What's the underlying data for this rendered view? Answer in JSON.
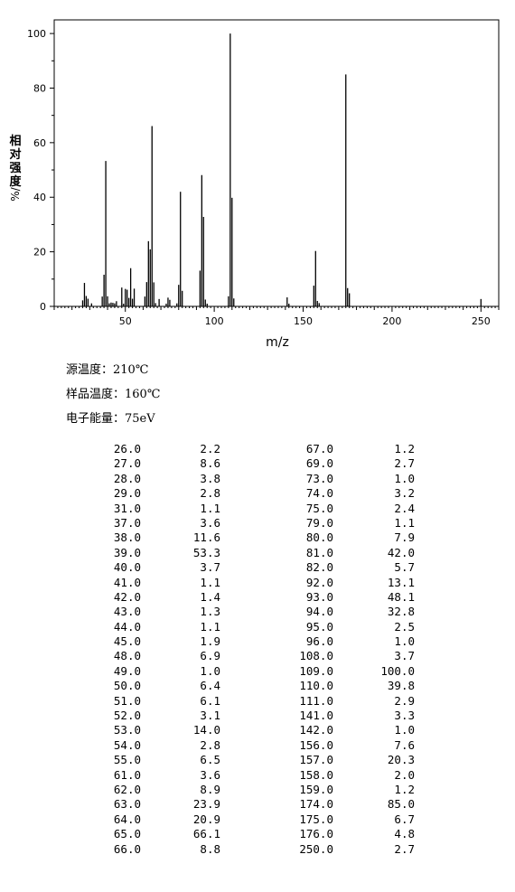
{
  "chart_data": {
    "type": "bar",
    "xlabel": "m/z",
    "ylabel": "相对强度/%",
    "xlim": [
      10,
      260
    ],
    "ylim": [
      0,
      105
    ],
    "xticks": [
      50,
      100,
      150,
      200,
      250
    ],
    "yticks": [
      0,
      20,
      40,
      60,
      80,
      100
    ],
    "grid": false,
    "peaks": [
      {
        "x": 26.0,
        "y": 2.2
      },
      {
        "x": 27.0,
        "y": 8.6
      },
      {
        "x": 28.0,
        "y": 3.8
      },
      {
        "x": 29.0,
        "y": 2.8
      },
      {
        "x": 31.0,
        "y": 1.1
      },
      {
        "x": 37.0,
        "y": 3.6
      },
      {
        "x": 38.0,
        "y": 11.6
      },
      {
        "x": 39.0,
        "y": 53.3
      },
      {
        "x": 40.0,
        "y": 3.7
      },
      {
        "x": 41.0,
        "y": 1.1
      },
      {
        "x": 42.0,
        "y": 1.4
      },
      {
        "x": 43.0,
        "y": 1.3
      },
      {
        "x": 44.0,
        "y": 1.1
      },
      {
        "x": 45.0,
        "y": 1.9
      },
      {
        "x": 48.0,
        "y": 6.9
      },
      {
        "x": 49.0,
        "y": 1.0
      },
      {
        "x": 50.0,
        "y": 6.4
      },
      {
        "x": 51.0,
        "y": 6.1
      },
      {
        "x": 52.0,
        "y": 3.1
      },
      {
        "x": 53.0,
        "y": 14.0
      },
      {
        "x": 54.0,
        "y": 2.8
      },
      {
        "x": 55.0,
        "y": 6.5
      },
      {
        "x": 61.0,
        "y": 3.6
      },
      {
        "x": 62.0,
        "y": 8.9
      },
      {
        "x": 63.0,
        "y": 23.9
      },
      {
        "x": 64.0,
        "y": 20.9
      },
      {
        "x": 65.0,
        "y": 66.1
      },
      {
        "x": 66.0,
        "y": 8.8
      },
      {
        "x": 67.0,
        "y": 1.2
      },
      {
        "x": 69.0,
        "y": 2.7
      },
      {
        "x": 73.0,
        "y": 1.0
      },
      {
        "x": 74.0,
        "y": 3.2
      },
      {
        "x": 75.0,
        "y": 2.4
      },
      {
        "x": 79.0,
        "y": 1.1
      },
      {
        "x": 80.0,
        "y": 7.9
      },
      {
        "x": 81.0,
        "y": 42.0
      },
      {
        "x": 82.0,
        "y": 5.7
      },
      {
        "x": 92.0,
        "y": 13.1
      },
      {
        "x": 93.0,
        "y": 48.1
      },
      {
        "x": 94.0,
        "y": 32.8
      },
      {
        "x": 95.0,
        "y": 2.5
      },
      {
        "x": 96.0,
        "y": 1.0
      },
      {
        "x": 108.0,
        "y": 3.7
      },
      {
        "x": 109.0,
        "y": 100.0
      },
      {
        "x": 110.0,
        "y": 39.8
      },
      {
        "x": 111.0,
        "y": 2.9
      },
      {
        "x": 141.0,
        "y": 3.3
      },
      {
        "x": 142.0,
        "y": 1.0
      },
      {
        "x": 156.0,
        "y": 7.6
      },
      {
        "x": 157.0,
        "y": 20.3
      },
      {
        "x": 158.0,
        "y": 2.0
      },
      {
        "x": 159.0,
        "y": 1.2
      },
      {
        "x": 174.0,
        "y": 85.0
      },
      {
        "x": 175.0,
        "y": 6.7
      },
      {
        "x": 176.0,
        "y": 4.8
      },
      {
        "x": 250.0,
        "y": 2.7
      }
    ]
  },
  "conditions": {
    "source_temp": "源温度：210℃",
    "sample_temp": "样品温度：160℃",
    "electron_energy": "电子能量：75eV"
  },
  "table": {
    "rows": [
      [
        "26.0",
        "2.2",
        "67.0",
        "1.2"
      ],
      [
        "27.0",
        "8.6",
        "69.0",
        "2.7"
      ],
      [
        "28.0",
        "3.8",
        "73.0",
        "1.0"
      ],
      [
        "29.0",
        "2.8",
        "74.0",
        "3.2"
      ],
      [
        "31.0",
        "1.1",
        "75.0",
        "2.4"
      ],
      [
        "37.0",
        "3.6",
        "79.0",
        "1.1"
      ],
      [
        "38.0",
        "11.6",
        "80.0",
        "7.9"
      ],
      [
        "39.0",
        "53.3",
        "81.0",
        "42.0"
      ],
      [
        "40.0",
        "3.7",
        "82.0",
        "5.7"
      ],
      [
        "41.0",
        "1.1",
        "92.0",
        "13.1"
      ],
      [
        "42.0",
        "1.4",
        "93.0",
        "48.1"
      ],
      [
        "43.0",
        "1.3",
        "94.0",
        "32.8"
      ],
      [
        "44.0",
        "1.1",
        "95.0",
        "2.5"
      ],
      [
        "45.0",
        "1.9",
        "96.0",
        "1.0"
      ],
      [
        "48.0",
        "6.9",
        "108.0",
        "3.7"
      ],
      [
        "49.0",
        "1.0",
        "109.0",
        "100.0"
      ],
      [
        "50.0",
        "6.4",
        "110.0",
        "39.8"
      ],
      [
        "51.0",
        "6.1",
        "111.0",
        "2.9"
      ],
      [
        "52.0",
        "3.1",
        "141.0",
        "3.3"
      ],
      [
        "53.0",
        "14.0",
        "142.0",
        "1.0"
      ],
      [
        "54.0",
        "2.8",
        "156.0",
        "7.6"
      ],
      [
        "55.0",
        "6.5",
        "157.0",
        "20.3"
      ],
      [
        "61.0",
        "3.6",
        "158.0",
        "2.0"
      ],
      [
        "62.0",
        "8.9",
        "159.0",
        "1.2"
      ],
      [
        "63.0",
        "23.9",
        "174.0",
        "85.0"
      ],
      [
        "64.0",
        "20.9",
        "175.0",
        "6.7"
      ],
      [
        "65.0",
        "66.1",
        "176.0",
        "4.8"
      ],
      [
        "66.0",
        "8.8",
        "250.0",
        "2.7"
      ]
    ]
  }
}
